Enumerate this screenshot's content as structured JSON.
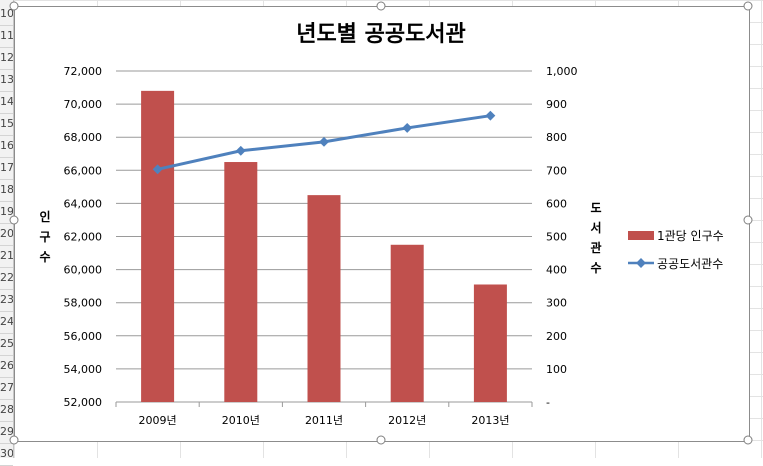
{
  "sheet": {
    "row_numbers": [
      "10",
      "11",
      "12",
      "13",
      "14",
      "15",
      "16",
      "17",
      "18",
      "19",
      "20",
      "21",
      "22",
      "23",
      "24",
      "25",
      "26",
      "27",
      "28",
      "29",
      "30"
    ]
  },
  "chart_data": {
    "type": "bar+line",
    "title": "년도별 공공도서관",
    "categories": [
      "2009년",
      "2010년",
      "2011년",
      "2012년",
      "2013년"
    ],
    "series": [
      {
        "name": "1관당 인구수",
        "type": "bar",
        "axis": "left",
        "color": "#c0504d",
        "values": [
          70800,
          66500,
          64500,
          61500,
          59100
        ]
      },
      {
        "name": "공공도서관수",
        "type": "line",
        "axis": "right",
        "color": "#4f81bd",
        "values": [
          703,
          759,
          786,
          828,
          865
        ]
      }
    ],
    "ylabel_left": "인구수",
    "ylabel_right": "도서관수",
    "ylim_left": [
      52000,
      72000
    ],
    "ylim_right": [
      0,
      1000
    ],
    "yticks_left": [
      "72,000",
      "70,000",
      "68,000",
      "66,000",
      "64,000",
      "62,000",
      "60,000",
      "58,000",
      "56,000",
      "54,000",
      "52,000"
    ],
    "yticks_right": [
      "1,000",
      "900",
      "800",
      "700",
      "600",
      "500",
      "400",
      "300",
      "200",
      "100",
      "-"
    ],
    "grid": true,
    "legend": "right"
  }
}
